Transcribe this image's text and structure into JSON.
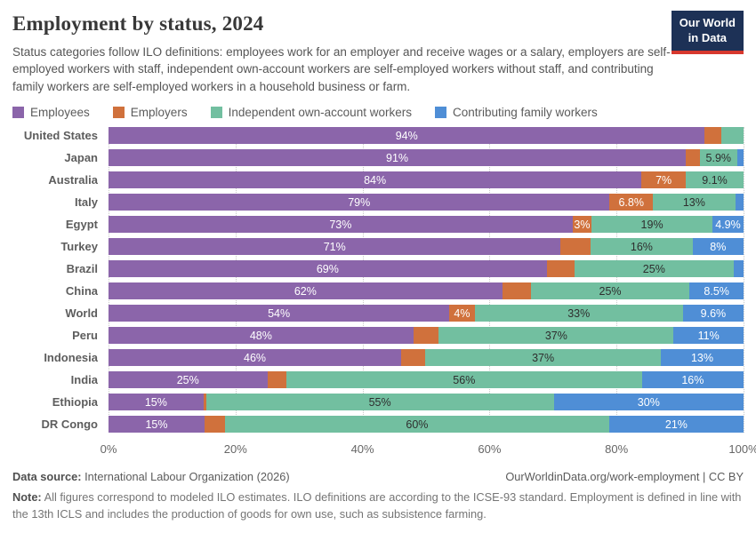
{
  "header": {
    "title": "Employment by status, 2024",
    "subtitle": "Status categories follow ILO definitions: employees work for an employer and receive wages or a salary, employers are self-employed workers with staff, independent own-account workers are self-employed workers without staff, and contributing family workers are self-employed workers in a household business or farm.",
    "logo_line1": "Our World",
    "logo_line2": "in Data",
    "logo_bg": "#1d3156",
    "logo_accent": "#d7382e"
  },
  "legend": [
    {
      "name": "Employees",
      "color": "#8b65aa",
      "text_color": "#ffffff"
    },
    {
      "name": "Employers",
      "color": "#d0713c",
      "text_color": "#ffffff"
    },
    {
      "name": "Independent own-account workers",
      "color": "#72bfa0",
      "text_color": "#2e2e2e"
    },
    {
      "name": "Contributing family workers",
      "color": "#4f8ed6",
      "text_color": "#ffffff"
    }
  ],
  "chart_data": {
    "type": "bar",
    "orientation": "horizontal",
    "stacked": true,
    "unit": "%",
    "xlim": [
      0,
      100
    ],
    "x_ticks": [
      "0%",
      "20%",
      "40%",
      "60%",
      "80%",
      "100%"
    ],
    "grid": "dotted-vertical",
    "legend_position": "top",
    "series_names": [
      "Employees",
      "Employers",
      "Independent own-account workers",
      "Contributing family workers"
    ],
    "rows": [
      {
        "country": "United States",
        "values": [
          94,
          2.6,
          3.5,
          0
        ],
        "labels": [
          "94%",
          "",
          "",
          ""
        ]
      },
      {
        "country": "Japan",
        "values": [
          91,
          2.2,
          5.9,
          1.0
        ],
        "labels": [
          "91%",
          "",
          "5.9%",
          ""
        ]
      },
      {
        "country": "Australia",
        "values": [
          84,
          7,
          9.1,
          0
        ],
        "labels": [
          "84%",
          "7%",
          "9.1%",
          ""
        ]
      },
      {
        "country": "Italy",
        "values": [
          79,
          6.8,
          13,
          1.3
        ],
        "labels": [
          "79%",
          "6.8%",
          "13%",
          ""
        ]
      },
      {
        "country": "Egypt",
        "values": [
          73,
          3,
          19,
          4.9
        ],
        "labels": [
          "73%",
          "3%",
          "19%",
          "4.9%"
        ]
      },
      {
        "country": "Turkey",
        "values": [
          71,
          4.7,
          16,
          8
        ],
        "labels": [
          "71%",
          "",
          "16%",
          "8%"
        ]
      },
      {
        "country": "Brazil",
        "values": [
          69,
          4.4,
          25,
          1.6
        ],
        "labels": [
          "69%",
          "",
          "25%",
          ""
        ]
      },
      {
        "country": "China",
        "values": [
          62,
          4.5,
          25,
          8.5
        ],
        "labels": [
          "62%",
          "",
          "25%",
          "8.5%"
        ]
      },
      {
        "country": "World",
        "values": [
          54,
          4,
          33,
          9.6
        ],
        "labels": [
          "54%",
          "4%",
          "33%",
          "9.6%"
        ]
      },
      {
        "country": "Peru",
        "values": [
          48,
          4,
          37,
          11
        ],
        "labels": [
          "48%",
          "",
          "37%",
          "11%"
        ]
      },
      {
        "country": "Indonesia",
        "values": [
          46,
          3.8,
          37,
          13
        ],
        "labels": [
          "46%",
          "",
          "37%",
          "13%"
        ]
      },
      {
        "country": "India",
        "values": [
          25,
          3,
          56,
          16
        ],
        "labels": [
          "25%",
          "",
          "56%",
          "16%"
        ]
      },
      {
        "country": "Ethiopia",
        "values": [
          15,
          0.4,
          55,
          30
        ],
        "labels": [
          "15%",
          "",
          "55%",
          "30%"
        ]
      },
      {
        "country": "DR Congo",
        "values": [
          15,
          3.2,
          60,
          21
        ],
        "labels": [
          "15%",
          "",
          "60%",
          "21%"
        ]
      }
    ]
  },
  "footer": {
    "datasource_label": "Data source:",
    "datasource": "International Labour Organization (2026)",
    "link": "OurWorldinData.org/work-employment",
    "separator": "|",
    "license": "CC BY",
    "note_label": "Note:",
    "note": "All figures correspond to modeled ILO estimates. ILO definitions are according to the ICSE-93 standard. Employment is defined in line with the 13th ICLS and includes the production of goods for own use, such as subsistence farming."
  }
}
